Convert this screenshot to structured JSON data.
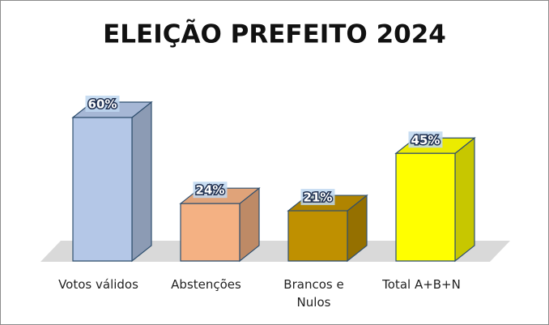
{
  "chart_data": {
    "type": "bar3d",
    "title": "ELEIÇÃO PREFEITO 2024",
    "categories": [
      "Votos válidos",
      "Abstenções",
      "Brancos e Nulos",
      "Total A+B+N"
    ],
    "values": [
      60,
      24,
      21,
      45
    ],
    "value_labels": [
      "60%",
      "24%",
      "21%",
      "45%"
    ],
    "colors": [
      "#b4c7e7",
      "#f4b183",
      "#bf9000",
      "#ffff00"
    ]
  }
}
